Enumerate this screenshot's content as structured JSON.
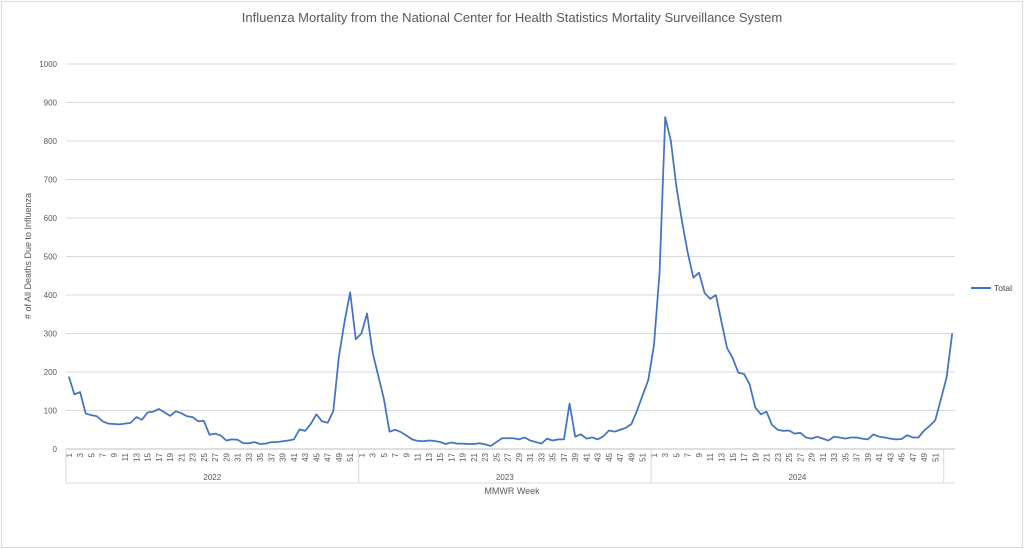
{
  "chart_data": {
    "type": "line",
    "title": "Influenza Mortality from the National Center for Health Statistics Mortality Surveillance System",
    "ylabel": "# of All Deaths Due to Influenza",
    "xlabel": "MMWR Week",
    "ylim": [
      0,
      1000
    ],
    "yticks": [
      "0",
      "100",
      "200",
      "300",
      "400",
      "500",
      "600",
      "700",
      "800",
      "900",
      "1000"
    ],
    "grid": "horizontal",
    "legend": "right",
    "color": "#4472c4",
    "years": [
      "2022",
      "2023",
      "2024"
    ],
    "week_tick_labels": [
      "1",
      "3",
      "5",
      "7",
      "9",
      "11",
      "13",
      "15",
      "17",
      "19",
      "21",
      "23",
      "25",
      "27",
      "29",
      "31",
      "33",
      "35",
      "37",
      "39",
      "41",
      "43",
      "45",
      "47",
      "49",
      "51"
    ],
    "series": [
      {
        "name": "Total",
        "values": [
          188,
          142,
          148,
          92,
          88,
          85,
          72,
          66,
          65,
          64,
          66,
          68,
          83,
          76,
          95,
          97,
          104,
          95,
          86,
          98,
          93,
          85,
          83,
          72,
          73,
          37,
          40,
          35,
          22,
          25,
          24,
          15,
          15,
          18,
          13,
          14,
          18,
          18,
          20,
          22,
          25,
          51,
          47,
          65,
          90,
          72,
          68,
          98,
          240,
          330,
          407,
          285,
          300,
          352,
          250,
          190,
          130,
          45,
          50,
          44,
          35,
          25,
          21,
          20,
          22,
          21,
          18,
          13,
          17,
          14,
          14,
          13,
          13,
          15,
          12,
          8,
          18,
          28,
          28,
          28,
          25,
          30,
          22,
          18,
          14,
          27,
          22,
          25,
          25,
          118,
          32,
          38,
          27,
          30,
          25,
          33,
          48,
          45,
          50,
          55,
          65,
          100,
          140,
          180,
          270,
          460,
          862,
          800,
          680,
          590,
          510,
          445,
          458,
          405,
          390,
          400,
          330,
          262,
          236,
          198,
          195,
          168,
          108,
          90,
          97,
          62,
          50,
          47,
          48,
          40,
          42,
          30,
          27,
          32,
          27,
          22,
          32,
          30,
          27,
          30,
          30,
          27,
          25,
          38,
          32,
          30,
          27,
          25,
          26,
          36,
          30,
          30,
          48,
          60,
          75,
          130,
          185,
          300
        ]
      }
    ]
  }
}
